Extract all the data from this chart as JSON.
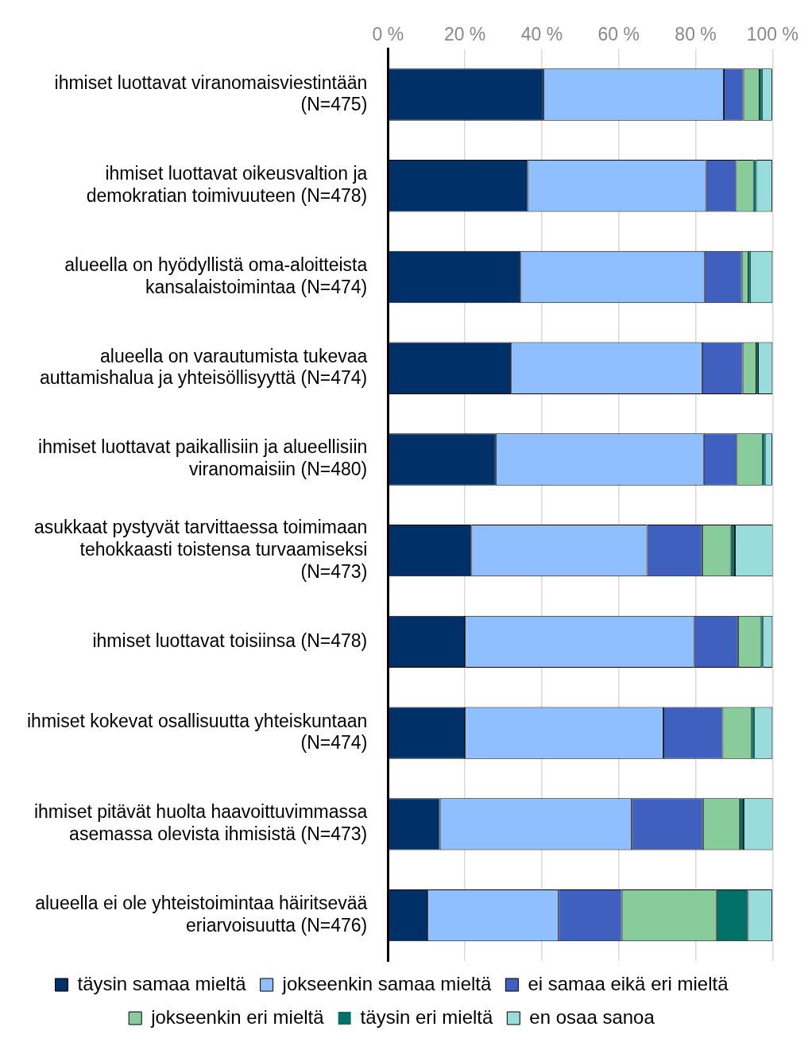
{
  "chart_data": {
    "type": "bar",
    "orientation": "horizontal",
    "stacked": true,
    "categories": [
      "ihmiset luottavat viranomaisviestintään (N=475)",
      "ihmiset luottavat oikeusvaltion ja demokratian toimivuuteen (N=478)",
      "alueella on hyödyllistä oma-aloitteista kansalaistoimintaa (N=474)",
      "alueella on varautumista tukevaa auttamishalua ja yhteisöllisyyttä (N=474)",
      "ihmiset luottavat paikallisiin ja alueellisiin viranomaisiin (N=480)",
      "asukkaat pystyvät tarvittaessa toimimaan tehokkaasti toistensa turvaamiseksi (N=473)",
      "ihmiset luottavat toisiinsa (N=478)",
      "ihmiset kokevat osallisuutta yhteiskuntaan (N=474)",
      "ihmiset pitävät huolta haavoittuvimmassa asemassa olevista ihmisistä (N=473)",
      "alueella ei ole yhteistoimintaa häiritsevää eriarvoisuutta (N=476)"
    ],
    "series": [
      {
        "name": "täysin samaa mieltä",
        "color": "#003068",
        "values": [
          40.4,
          36.4,
          34.5,
          32.0,
          28.0,
          21.7,
          20.0,
          20.0,
          13.5,
          10.3
        ]
      },
      {
        "name": "jokseenkin samaa mieltä",
        "color": "#8fbfff",
        "values": [
          46.9,
          46.3,
          47.8,
          49.7,
          54.1,
          45.7,
          59.6,
          51.6,
          49.9,
          34.1
        ]
      },
      {
        "name": "ei samaa eikä eri mieltä",
        "color": "#4060c0",
        "values": [
          5.1,
          7.8,
          9.7,
          10.5,
          8.6,
          14.3,
          11.4,
          15.4,
          18.5,
          16.4
        ]
      },
      {
        "name": "jokseenkin eri mieltä",
        "color": "#88cc9c",
        "values": [
          4.2,
          4.6,
          1.7,
          3.6,
          6.7,
          7.4,
          6.1,
          7.6,
          9.5,
          24.6
        ]
      },
      {
        "name": "täysin eri mieltä",
        "color": "#007068",
        "values": [
          0.6,
          0.6,
          0.4,
          0.4,
          0.6,
          1.1,
          0.4,
          0.6,
          1.1,
          8.2
        ]
      },
      {
        "name": "en osaa sanoa",
        "color": "#99dcdc",
        "values": [
          2.7,
          4.2,
          5.9,
          3.8,
          1.9,
          9.9,
          2.5,
          4.8,
          7.6,
          6.3
        ]
      }
    ],
    "xlim": [
      0,
      100
    ],
    "xticks": [
      {
        "value": 0,
        "label": "0 %"
      },
      {
        "value": 20,
        "label": "20 %"
      },
      {
        "value": 40,
        "label": "40 %"
      },
      {
        "value": 60,
        "label": "60 %"
      },
      {
        "value": 80,
        "label": "80 %"
      },
      {
        "value": 100,
        "label": "100 %"
      }
    ],
    "grid": "x",
    "legend": "bottom"
  }
}
